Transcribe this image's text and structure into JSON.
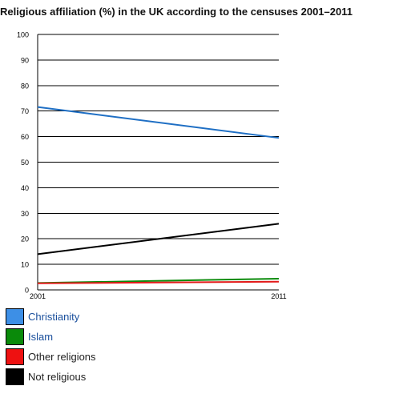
{
  "chart_data": {
    "type": "line",
    "title": "Religious affiliation (%) in the UK according to the censuses 2001–2011",
    "x": [
      "2001",
      "2011"
    ],
    "ylim": [
      0,
      100
    ],
    "yticks": [
      "0",
      "10",
      "20",
      "30",
      "40",
      "50",
      "60",
      "70",
      "80",
      "90",
      "100"
    ],
    "grid": true,
    "legend_position": "bottom-left",
    "series": [
      {
        "name": "Christianity",
        "values": [
          71.6,
          59.5
        ],
        "color": "#1f6fc4",
        "swatch": "#3d8fe6",
        "label_color": "#1a4f9c"
      },
      {
        "name": "Islam",
        "values": [
          2.7,
          4.4
        ],
        "color": "#0a8a0a",
        "swatch": "#0a8a0a",
        "label_color": "#1a4f9c"
      },
      {
        "name": "Other religions",
        "values": [
          2.6,
          3.2
        ],
        "color": "#e21a1a",
        "swatch": "#ee1111",
        "label_color": "#222222"
      },
      {
        "name": "Not religious",
        "values": [
          14.0,
          25.9
        ],
        "color": "#000000",
        "swatch": "#000000",
        "label_color": "#222222"
      }
    ]
  }
}
